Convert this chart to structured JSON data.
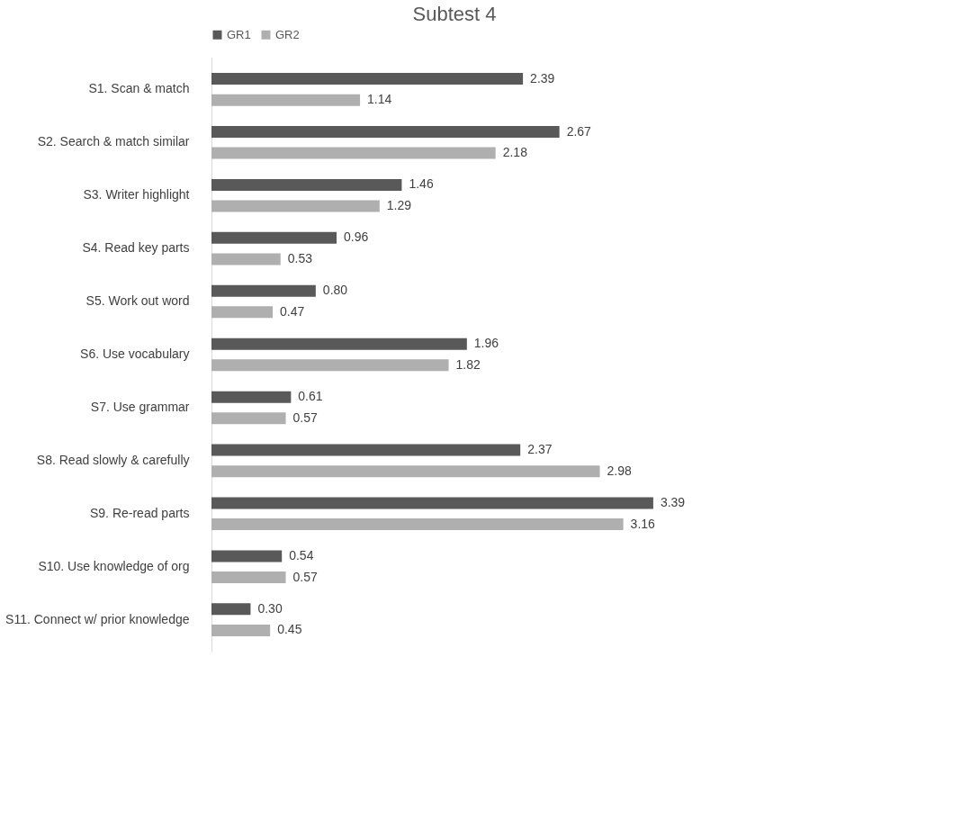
{
  "chart_data": {
    "type": "bar",
    "orientation": "horizontal",
    "title": "Subtest 4",
    "categories": [
      "S1. Scan & match",
      "S2. Search & match similar",
      "S3. Writer highlight",
      "S4. Read key parts",
      "S5. Work out word",
      "S6. Use vocabulary",
      "S7. Use grammar",
      "S8. Read slowly & carefully",
      "S9. Re-read parts",
      "S10. Use knowledge of org",
      "S11. Connect w/ prior knowledge"
    ],
    "series": [
      {
        "name": "GR1",
        "color": "#595959",
        "values": [
          2.39,
          2.67,
          1.46,
          0.96,
          0.8,
          1.96,
          0.61,
          2.37,
          3.39,
          0.54,
          0.3
        ],
        "value_labels": [
          "2.39",
          "2.67",
          "1.46",
          "0.96",
          "0.80",
          "1.96",
          "0.61",
          "2.37",
          "3.39",
          "0.54",
          "0.30"
        ]
      },
      {
        "name": "GR2",
        "color": "#afafaf",
        "values": [
          1.14,
          2.18,
          1.29,
          0.53,
          0.47,
          1.82,
          0.57,
          2.98,
          3.16,
          0.57,
          0.45
        ],
        "value_labels": [
          "1.14",
          "2.18",
          "1.29",
          "0.53",
          "0.47",
          "1.82",
          "0.57",
          "2.98",
          "3.16",
          "0.57",
          "0.45"
        ]
      }
    ],
    "legend": "top",
    "grid": false
  }
}
